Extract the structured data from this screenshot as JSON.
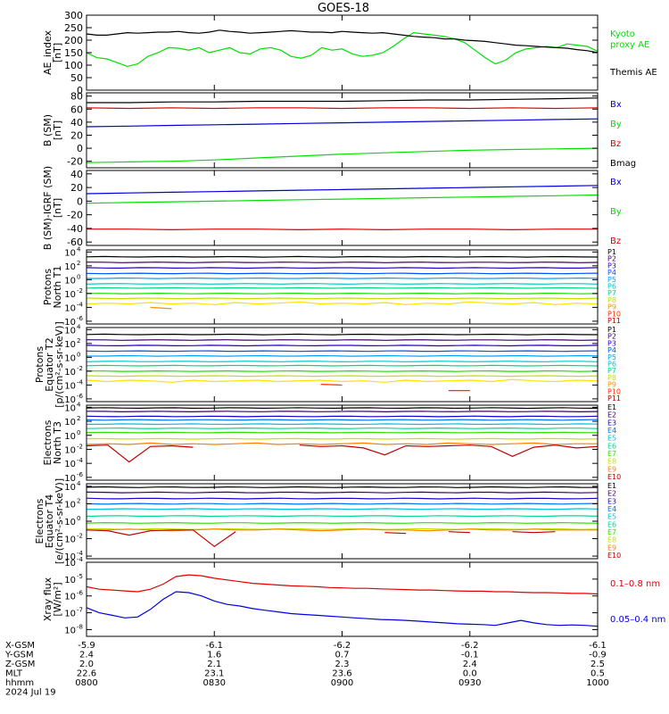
{
  "title": "GOES-18",
  "colors": {
    "black": "#000000",
    "red": "#e00000",
    "green": "#00e000",
    "blue": "#0000e0",
    "p": [
      "#000000",
      "#400060",
      "#2a00c8",
      "#0050ff",
      "#00a0ff",
      "#00c8c8",
      "#00d880",
      "#18e000",
      "#c0e000",
      "#ffe000",
      "#ff9000",
      "#ff3000",
      "#c00000"
    ],
    "e": [
      "#000000",
      "#400060",
      "#1800d0",
      "#0070ff",
      "#00c0e0",
      "#00d890",
      "#30e000",
      "#c8e000",
      "#ffd000",
      "#ff8000",
      "#e03000",
      "#c00000"
    ]
  },
  "x_ticks": {
    "rows": [
      {
        "label": "X-GSM",
        "values": [
          "-5.9",
          "-6.1",
          "-6.2",
          "-6.2",
          "-6.1"
        ]
      },
      {
        "label": "Y-GSM",
        "values": [
          "2.4",
          "1.6",
          "0.7",
          "-0.1",
          "-0.9"
        ]
      },
      {
        "label": "Z-GSM",
        "values": [
          "2.0",
          "2.1",
          "2.3",
          "2.4",
          "2.5"
        ]
      },
      {
        "label": "MLT",
        "values": [
          "22.6",
          "23.1",
          "23.6",
          "0.0",
          "0.5"
        ]
      },
      {
        "label": "hhmm",
        "values": [
          "0800",
          "0830",
          "0900",
          "0930",
          "1000"
        ]
      }
    ],
    "date": "2024 Jul 19"
  },
  "chart_data": [
    {
      "type": "line",
      "ylabel": [
        "AE_index",
        "[nT]"
      ],
      "ylim": [
        0,
        300
      ],
      "ticks": [
        "0",
        "50",
        "100",
        "150",
        "200",
        "250",
        "300"
      ],
      "legend": [
        {
          "label": "Kyoto",
          "color": "green"
        },
        {
          "label": "proxy AE",
          "color": "green"
        },
        {
          "label": "Themis AE",
          "color": "black"
        }
      ],
      "series": [
        {
          "name": "Kyoto proxy AE",
          "color": "green",
          "values": [
            150,
            130,
            125,
            110,
            95,
            105,
            135,
            150,
            170,
            168,
            160,
            170,
            150,
            160,
            170,
            150,
            145,
            165,
            170,
            160,
            135,
            128,
            140,
            170,
            160,
            165,
            145,
            135,
            140,
            150,
            175,
            205,
            230,
            225,
            220,
            215,
            205,
            190,
            160,
            130,
            105,
            120,
            150,
            165,
            170,
            175,
            170,
            185,
            180,
            175,
            155
          ]
        },
        {
          "name": "Themis AE",
          "color": "black",
          "values": [
            225,
            220,
            220,
            225,
            230,
            228,
            230,
            232,
            232,
            235,
            230,
            228,
            232,
            240,
            235,
            232,
            228,
            230,
            232,
            235,
            238,
            235,
            232,
            232,
            230,
            235,
            232,
            230,
            228,
            230,
            225,
            220,
            215,
            212,
            210,
            205,
            205,
            200,
            198,
            195,
            190,
            185,
            180,
            178,
            175,
            172,
            170,
            168,
            162,
            158,
            150
          ]
        }
      ]
    },
    {
      "type": "line",
      "ylabel": [
        "B (SM)",
        "[nT]"
      ],
      "ylim": [
        -30,
        85
      ],
      "ticks": [
        "-20",
        "0",
        "20",
        "40",
        "60",
        "80"
      ],
      "legend": [
        {
          "label": "Bx",
          "color": "blue"
        },
        {
          "label": "By",
          "color": "green"
        },
        {
          "label": "Bz",
          "color": "red"
        },
        {
          "label": "Bmag",
          "color": "black"
        }
      ],
      "series": [
        {
          "name": "Bx",
          "color": "blue",
          "values": [
            33,
            34,
            35,
            36,
            37,
            38,
            39,
            40,
            41,
            42,
            43,
            44,
            45
          ]
        },
        {
          "name": "By",
          "color": "green",
          "values": [
            -22,
            -21,
            -20,
            -18,
            -15,
            -12,
            -9,
            -7,
            -5,
            -3,
            -2,
            -1,
            0
          ]
        },
        {
          "name": "Bz",
          "color": "red",
          "values": [
            62,
            61,
            62,
            61,
            62,
            62,
            61,
            62,
            62,
            61,
            62,
            61,
            62
          ]
        },
        {
          "name": "Bmag",
          "color": "black",
          "values": [
            70,
            70,
            71,
            71,
            72,
            72,
            72,
            73,
            74,
            74,
            75,
            76,
            77
          ]
        }
      ]
    },
    {
      "type": "line",
      "ylabel": [
        "B (SM)-IGRF (SM)",
        "[nT]"
      ],
      "ylim": [
        -65,
        45
      ],
      "ticks": [
        "-60",
        "-40",
        "-20",
        "0",
        "20",
        "40"
      ],
      "legend": [
        {
          "label": "Bx",
          "color": "blue"
        },
        {
          "label": "By",
          "color": "green"
        },
        {
          "label": "Bz",
          "color": "red"
        }
      ],
      "series": [
        {
          "name": "Bx",
          "color": "blue",
          "values": [
            11,
            12,
            13,
            14,
            15,
            16,
            17,
            18,
            19,
            20,
            21,
            22,
            23
          ]
        },
        {
          "name": "By",
          "color": "green",
          "values": [
            -3,
            -2,
            -1,
            0,
            1,
            2,
            3,
            4,
            5,
            6,
            7,
            8,
            9
          ]
        },
        {
          "name": "Bz",
          "color": "red",
          "values": [
            -41,
            -41,
            -42,
            -41,
            -41,
            -42,
            -41,
            -42,
            -41,
            -41,
            -42,
            -41,
            -41
          ]
        }
      ]
    },
    {
      "type": "line",
      "log": true,
      "ylabel": [
        "Protons",
        "North T1"
      ],
      "ylim": [
        -6.4,
        4.3
      ],
      "ticks": [
        {
          "exp": "4",
          "v": 4
        },
        {
          "exp": "2",
          "v": 2
        },
        {
          "exp": "0",
          "v": 0
        },
        {
          "exp": "-2",
          "v": -2
        },
        {
          "exp": "-4",
          "v": -4
        },
        {
          "exp": "-6",
          "v": -6
        }
      ],
      "legend_labels": [
        "P1",
        "P2",
        "P3",
        "P4",
        "P5",
        "P6",
        "P7",
        "P8",
        "P9",
        "P10",
        "P11"
      ],
      "legend_colors": [
        0,
        1,
        2,
        3,
        4,
        5,
        6,
        8,
        10,
        11,
        12
      ],
      "levels": [
        3.3,
        2.5,
        1.7,
        0.9,
        0.2,
        -0.6,
        -1.2,
        -2.0,
        -2.7
      ],
      "colors": [
        0,
        1,
        2,
        3,
        4,
        5,
        6,
        7,
        8
      ],
      "noisy": [
        {
          "color": 9,
          "values": [
            -3.5,
            -3.4,
            -3.5,
            -3.3,
            -3.5,
            -3.4,
            -3.6,
            -3.3,
            -3.5,
            -3.4,
            -3.2,
            -3.5,
            -3.4,
            -3.5,
            -3.3,
            -3.6,
            -3.4,
            -3.5,
            -3.2,
            -3.4,
            -3.5,
            -3.3,
            -3.6,
            -3.4,
            -3.5
          ]
        },
        {
          "color": 10,
          "values": [
            null,
            null,
            null,
            -4.0,
            -4.2,
            null,
            null,
            null,
            null,
            null,
            null,
            null,
            null,
            null,
            null,
            null,
            null,
            null,
            null,
            null,
            null,
            null,
            null,
            null,
            null
          ]
        }
      ]
    },
    {
      "type": "line",
      "log": true,
      "ylabel": [
        "Protons",
        "Equator T2",
        "[p/(cm²-s-sr-keV)]"
      ],
      "ylim": [
        -6.4,
        4.3
      ],
      "ticks": [
        {
          "exp": "4",
          "v": 4
        },
        {
          "exp": "2",
          "v": 2
        },
        {
          "exp": "0",
          "v": 0
        },
        {
          "exp": "-2",
          "v": -2
        },
        {
          "exp": "-4",
          "v": -4
        },
        {
          "exp": "-6",
          "v": -6
        }
      ],
      "legend_labels": [
        "P1",
        "P2",
        "P3",
        "P4",
        "P5",
        "P6",
        "P7",
        "P8",
        "P9",
        "P10",
        "P11"
      ],
      "legend_colors": [
        0,
        1,
        2,
        3,
        4,
        5,
        6,
        8,
        10,
        11,
        12
      ],
      "levels": [
        3.3,
        2.5,
        1.7,
        0.9,
        0.2,
        -0.6,
        -1.2,
        -2.0,
        -2.7
      ],
      "colors": [
        0,
        1,
        2,
        3,
        4,
        5,
        6,
        7,
        8
      ],
      "noisy": [
        {
          "color": 9,
          "values": [
            -3.3,
            -3.5,
            -3.3,
            -3.4,
            -3.6,
            -3.3,
            -3.5,
            -3.4,
            -3.3,
            -3.5,
            -3.4,
            -3.3,
            -3.5,
            -3.4,
            -3.6,
            -3.3,
            -3.5,
            -3.4,
            -3.3,
            -3.5,
            -3.2,
            -3.4,
            -3.5,
            -3.3,
            -3.4
          ]
        },
        {
          "color": 11,
          "values": [
            null,
            null,
            null,
            null,
            null,
            null,
            null,
            null,
            null,
            null,
            null,
            -3.9,
            -4.0,
            null,
            null,
            null,
            null,
            -4.8,
            -4.8,
            null,
            null,
            null,
            null,
            null,
            null
          ]
        }
      ]
    },
    {
      "type": "line",
      "log": true,
      "ylabel": [
        "Electrons",
        "North T3"
      ],
      "ylim": [
        -6.4,
        4.3
      ],
      "ticks": [
        {
          "exp": "4",
          "v": 4
        },
        {
          "exp": "2",
          "v": 2
        },
        {
          "exp": "0",
          "v": 0
        },
        {
          "exp": "-2",
          "v": -2
        },
        {
          "exp": "-4",
          "v": -4
        },
        {
          "exp": "-6",
          "v": -6
        }
      ],
      "legend_labels": [
        "E1",
        "E2",
        "E3",
        "E4",
        "E5",
        "E6",
        "E7",
        "E8",
        "E9",
        "E10"
      ],
      "legend_colors": [
        0,
        1,
        2,
        3,
        4,
        5,
        6,
        7,
        9,
        11
      ],
      "levels": [
        3.9,
        3.4,
        2.7,
        2.2,
        1.6,
        1.0,
        0.4,
        -0.5
      ],
      "colors": [
        0,
        1,
        2,
        3,
        4,
        5,
        6,
        7
      ],
      "noisy": [
        {
          "color": 9,
          "values": [
            -1.3,
            -1.2,
            -1.3,
            -1.1,
            -1.3,
            -1.2,
            -1.3,
            -1.2,
            -1.1,
            -1.3,
            -1.2,
            -1.3,
            -1.2,
            -1.1,
            -1.3,
            -1.2,
            -1.3,
            -1.1,
            -1.2,
            -1.3,
            -1.2,
            -1.1,
            -1.3,
            -1.2,
            -1.2
          ]
        },
        {
          "color": 11,
          "values": [
            -1.5,
            -1.4,
            -3.8,
            -1.6,
            -1.5,
            -1.7,
            null,
            null,
            null,
            null,
            -1.4,
            -1.6,
            -1.5,
            -1.8,
            -2.8,
            -1.5,
            -1.6,
            -1.5,
            -1.4,
            -1.6,
            -3.0,
            -1.7,
            -1.4,
            -1.8,
            -1.6
          ]
        }
      ]
    },
    {
      "type": "line",
      "log": true,
      "ylabel": [
        "Electrons",
        "Equator T4",
        "[e/(cm²-s-sr-keV)]"
      ],
      "ylim": [
        -4.3,
        4.3
      ],
      "ticks": [
        {
          "exp": "-4",
          "v": -4
        },
        {
          "exp": "-2",
          "v": -2
        },
        {
          "exp": "0",
          "v": 0
        },
        {
          "exp": "2",
          "v": 2
        },
        {
          "exp": "4",
          "v": 4
        }
      ],
      "legend_labels": [
        "E1",
        "E2",
        "E3",
        "E4",
        "E5",
        "E6",
        "E7",
        "E8",
        "E9",
        "E10"
      ],
      "legend_colors": [
        0,
        1,
        2,
        3,
        4,
        5,
        6,
        7,
        9,
        11
      ],
      "levels": [
        3.9,
        3.3,
        2.6,
        2.0,
        1.4,
        0.6,
        -0.2,
        -0.9
      ],
      "colors": [
        0,
        1,
        2,
        3,
        4,
        5,
        6,
        7
      ],
      "noisy": [
        {
          "color": 9,
          "values": [
            -1.0,
            -1.0,
            -0.9,
            -1.0,
            -1.1,
            -1.0,
            -0.9,
            -1.0,
            -1.0,
            -0.9,
            -1.0,
            -1.1,
            -1.0,
            -0.9,
            -1.0,
            -1.0,
            -1.1,
            -1.0,
            -0.9,
            -1.0,
            -1.0,
            -0.9,
            -1.0,
            -1.0,
            -1.0
          ]
        },
        {
          "color": 11,
          "values": [
            -1.0,
            -1.1,
            -1.6,
            -1.1,
            -1.0,
            -1.0,
            -2.9,
            -1.2,
            null,
            null,
            null,
            null,
            null,
            null,
            -1.3,
            -1.4,
            null,
            -1.2,
            -1.3,
            null,
            -1.2,
            -1.3,
            -1.2,
            null,
            -1.2
          ]
        }
      ]
    },
    {
      "type": "line",
      "log": true,
      "ylabel": [
        "Xray flux",
        "[W/m²]"
      ],
      "ylim": [
        -8.4,
        -4.0
      ],
      "ticks": [
        {
          "exp": "-8",
          "v": -8
        },
        {
          "exp": "-7",
          "v": -7
        },
        {
          "exp": "-6",
          "v": -6
        },
        {
          "exp": "-5",
          "v": -5
        },
        {
          "exp": "-4",
          "v": -4
        }
      ],
      "legend": [
        {
          "label": "0.1–0.8 nm",
          "color": "red"
        },
        {
          "label": "0.05–0.4 nm",
          "color": "blue"
        }
      ],
      "series": [
        {
          "name": "0.1–0.8 nm",
          "color": "red",
          "values": [
            -5.45,
            -5.6,
            -5.65,
            -5.7,
            -5.75,
            -5.6,
            -5.3,
            -4.85,
            -4.75,
            -4.8,
            -4.95,
            -5.05,
            -5.15,
            -5.25,
            -5.3,
            -5.35,
            -5.4,
            -5.42,
            -5.45,
            -5.5,
            -5.52,
            -5.55,
            -5.55,
            -5.58,
            -5.6,
            -5.62,
            -5.65,
            -5.65,
            -5.68,
            -5.7,
            -5.72,
            -5.72,
            -5.75,
            -5.75,
            -5.78,
            -5.8,
            -5.8,
            -5.82,
            -5.85,
            -5.85,
            -5.88
          ]
        },
        {
          "name": "0.05–0.4 nm",
          "color": "blue",
          "values": [
            -6.7,
            -7.0,
            -7.15,
            -7.3,
            -7.25,
            -6.8,
            -6.2,
            -5.75,
            -5.8,
            -6.0,
            -6.3,
            -6.5,
            -6.6,
            -6.75,
            -6.85,
            -6.95,
            -7.05,
            -7.1,
            -7.15,
            -7.2,
            -7.25,
            -7.3,
            -7.35,
            -7.4,
            -7.42,
            -7.45,
            -7.5,
            -7.55,
            -7.6,
            -7.65,
            -7.68,
            -7.7,
            -7.75,
            -7.6,
            -7.45,
            -7.6,
            -7.7,
            -7.75,
            -7.72,
            -7.75,
            -7.8
          ]
        }
      ]
    }
  ]
}
